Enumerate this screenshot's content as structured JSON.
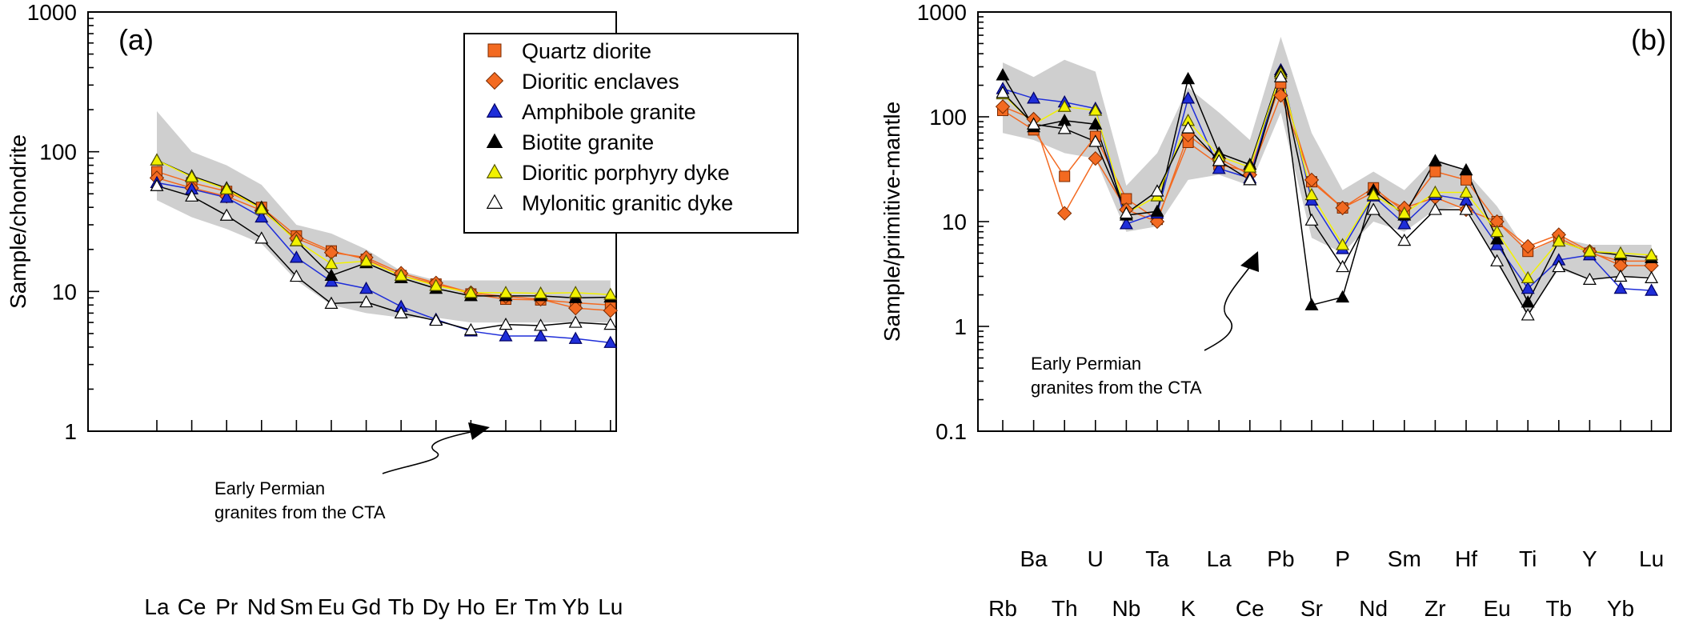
{
  "chart_data": [
    {
      "type": "line",
      "panel_label": "(a)",
      "ylabel": "Sample/chondrite",
      "yscale": "log",
      "ylim": [
        1,
        1000
      ],
      "ytick_labels": [
        "1",
        "10",
        "100",
        "1000"
      ],
      "ytick_values": [
        1,
        10,
        100,
        1000
      ],
      "categories": [
        "La",
        "Ce",
        "Pr",
        "Nd",
        "Sm",
        "Eu",
        "Gd",
        "Tb",
        "Dy",
        "Ho",
        "Er",
        "Tm",
        "Yb",
        "Lu"
      ],
      "legend": {
        "placement": "top-right",
        "entries": [
          "Quartz diorite",
          "Dioritic enclaves",
          "Amphibole granite",
          "Biotite granite",
          "Dioritic porphyry dyke",
          "Mylonitic granitic dyke"
        ]
      },
      "annotation": [
        "Early Permian",
        "granites from the CTA"
      ],
      "field": {
        "name": "Early Permian granites from the CTA",
        "upper": [
          195,
          100,
          80,
          58,
          30,
          26,
          20,
          14,
          12,
          12,
          12,
          12,
          12,
          12
        ],
        "lower": [
          45,
          34,
          28,
          22,
          12,
          8,
          7,
          6.5,
          6.5,
          6,
          6,
          6,
          6,
          6
        ]
      },
      "series": [
        {
          "name": "Quartz diorite",
          "values": [
            72,
            60,
            52,
            40,
            25,
            19.5,
            17,
            13,
            11.3,
            9.6,
            8.8,
            8.7,
            8.3,
            8.0
          ],
          "color": "#f36a21"
        },
        {
          "name": "Dioritic enclaves",
          "values": [
            65,
            55,
            48,
            38,
            24,
            19,
            17.5,
            13.5,
            11.5,
            9.8,
            9.2,
            8.8,
            7.6,
            7.3
          ],
          "color": "#f36a21"
        },
        {
          "name": "Amphibole granite",
          "values": [
            60,
            54,
            47,
            34,
            17.5,
            11.8,
            10.5,
            7.8,
            6.3,
            5.2,
            4.8,
            4.8,
            4.6,
            4.3
          ],
          "color": "#1f2ed9"
        },
        {
          "name": "Biotite granite",
          "values": [
            87,
            67,
            55,
            40,
            23,
            13,
            16,
            12.5,
            10.5,
            9.3,
            9.3,
            9.3,
            9.0,
            9.1
          ],
          "color": "#000000"
        },
        {
          "name": "Dioritic porphyry dyke",
          "values": [
            87,
            66,
            54,
            39,
            23,
            15.8,
            16.5,
            13,
            11,
            9.8,
            9.8,
            9.7,
            9.8,
            9.5
          ],
          "color": "#f2f200"
        },
        {
          "name": "Mylonitic granitic dyke",
          "values": [
            57,
            48,
            35,
            24,
            12.8,
            8.2,
            8.4,
            7.0,
            6.2,
            5.3,
            5.8,
            5.7,
            6.0,
            5.8
          ],
          "color": "#ffffff"
        }
      ]
    },
    {
      "type": "line",
      "panel_label": "(b)",
      "ylabel": "Sample/primitive-mantle",
      "yscale": "log",
      "ylim": [
        0.1,
        1000
      ],
      "ytick_labels": [
        "0.1",
        "1",
        "10",
        "100",
        "1000"
      ],
      "ytick_values": [
        0.1,
        1,
        10,
        100,
        1000
      ],
      "categories": [
        "Rb",
        "Ba",
        "Th",
        "U",
        "Nb",
        "Ta",
        "K",
        "La",
        "Ce",
        "Pb",
        "Sr",
        "P",
        "Nd",
        "Sm",
        "Zr",
        "Hf",
        "Eu",
        "Ti",
        "Tb",
        "Y",
        "Yb",
        "Lu"
      ],
      "annotation": [
        "Early Permian",
        "granites from the CTA"
      ],
      "field": {
        "name": "Early Permian granites from the CTA",
        "upper": [
          330,
          240,
          350,
          270,
          22,
          45,
          190,
          110,
          60,
          580,
          70,
          20,
          30,
          20,
          40,
          30,
          14,
          5,
          7,
          6,
          6,
          6
        ],
        "lower": [
          70,
          60,
          45,
          40,
          8,
          9,
          25,
          28,
          22,
          110,
          7,
          5,
          10,
          8,
          13,
          14,
          4,
          1.3,
          3.5,
          2.8,
          3.0,
          3.0
        ]
      },
      "series": [
        {
          "name": "Quartz diorite",
          "values": [
            115,
            75,
            27,
            65,
            16.5,
            10.5,
            57,
            35,
            30,
            210,
            24,
            13.5,
            21,
            12.5,
            30,
            25,
            10,
            5.2,
            7.0,
            5.0,
            4.2,
            4.2
          ],
          "color": "#f36a21"
        },
        {
          "name": "Dioritic enclaves",
          "values": [
            125,
            95,
            12,
            40,
            13,
            10,
            67,
            40,
            28,
            160,
            25,
            13.5,
            19,
            13.5,
            17,
            13,
            10,
            5.8,
            7.5,
            5.2,
            3.8,
            3.8
          ],
          "color": "#f36a21"
        },
        {
          "name": "Amphibole granite",
          "values": [
            185,
            150,
            138,
            120,
            9.5,
            12,
            150,
            32,
            26,
            280,
            16,
            5.5,
            17.5,
            9.5,
            18,
            16,
            6.0,
            2.3,
            4.3,
            4.8,
            2.3,
            2.2
          ],
          "color": "#1f2ed9"
        },
        {
          "name": "Biotite granite",
          "values": [
            250,
            80,
            92,
            85,
            11.5,
            12.5,
            230,
            45,
            35,
            270,
            1.6,
            1.9,
            20,
            11.5,
            38,
            31,
            6.8,
            1.7,
            6.5,
            5.2,
            4.8,
            4.5
          ],
          "color": "#000000"
        },
        {
          "name": "Dioritic porphyry dyke",
          "values": [
            165,
            85,
            125,
            115,
            12,
            17.5,
            92,
            42,
            33,
            260,
            18,
            6,
            18,
            12,
            19,
            19,
            8.0,
            2.9,
            6.5,
            5.2,
            5.0,
            4.8
          ],
          "color": "#f2f200"
        },
        {
          "name": "Mylonitic granitic dyke",
          "values": [
            170,
            85,
            77,
            58,
            12,
            19.5,
            78,
            38,
            25,
            240,
            10.3,
            3.7,
            13,
            6.6,
            13,
            13,
            4.2,
            1.28,
            3.7,
            2.8,
            3.0,
            2.9
          ],
          "color": "#ffffff"
        }
      ]
    }
  ]
}
